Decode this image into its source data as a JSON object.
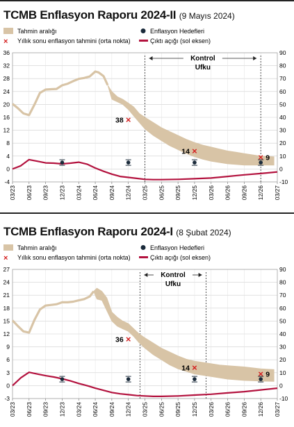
{
  "chart_data": [
    {
      "type": "line",
      "title": "TCMB Enflasyon Raporu 2024-II",
      "subtitle": "(9 Mayıs 2024)",
      "legend": {
        "band": "Tahmin aralığı",
        "marker": "Yıllık sonu enflasyon tahmini (orta nokta)",
        "target": "Enflasyon Hedefleri",
        "gap": "Çıktı açığı (sol eksen)"
      },
      "colors": {
        "band": "#d8c4a6",
        "marker": "#d42020",
        "gap": "#b3123e",
        "target": "#1a2a3a"
      },
      "left_axis": {
        "ticks": [
          -4,
          0,
          4,
          8,
          12,
          16,
          20,
          24,
          28,
          32,
          36
        ],
        "range": [
          -4,
          36
        ]
      },
      "right_axis": {
        "ticks": [
          -10,
          0,
          10,
          20,
          30,
          40,
          50,
          60,
          70,
          80,
          90
        ],
        "range": [
          -10,
          90
        ]
      },
      "x_tick_labels": [
        "03/23",
        "06/23",
        "09/23",
        "12/23",
        "03/24",
        "06/24",
        "09/24",
        "12/24",
        "03/25",
        "06/25",
        "09/25",
        "12/25",
        "03/26",
        "06/26",
        "09/26",
        "12/26",
        "03/27"
      ],
      "horizon_label": [
        "Kontrol",
        "Ufku"
      ],
      "horizon_range": [
        8,
        15
      ],
      "inflation_path": [
        [
          0,
          50.5
        ],
        [
          0.33,
          47
        ],
        [
          0.66,
          43
        ],
        [
          1,
          41.7
        ],
        [
          1.33,
          50
        ],
        [
          1.66,
          59
        ],
        [
          2,
          61.5
        ],
        [
          2.33,
          61.8
        ],
        [
          2.66,
          62
        ],
        [
          3,
          64.8
        ],
        [
          3.33,
          66
        ],
        [
          3.66,
          68
        ],
        [
          4,
          69.8
        ],
        [
          4.33,
          70.5
        ],
        [
          4.66,
          71.6
        ],
        [
          5,
          75.5
        ],
        [
          5.2,
          74.8
        ],
        [
          5.5,
          71.9
        ],
        [
          5.75,
          65
        ]
      ],
      "band_upper": [
        [
          5.75,
          65
        ],
        [
          6,
          60
        ],
        [
          6.33,
          56
        ],
        [
          6.66,
          54
        ],
        [
          7,
          51
        ],
        [
          7.33,
          48
        ],
        [
          7.66,
          43
        ],
        [
          8,
          40
        ],
        [
          8.5,
          36
        ],
        [
          9,
          32
        ],
        [
          9.5,
          29
        ],
        [
          10,
          26
        ],
        [
          10.5,
          23
        ],
        [
          11,
          20.5
        ],
        [
          11.5,
          18.5
        ],
        [
          12,
          17
        ],
        [
          12.5,
          15.5
        ],
        [
          13,
          14
        ],
        [
          13.5,
          13
        ],
        [
          14,
          12
        ],
        [
          15,
          10
        ],
        [
          15.8,
          9.5
        ]
      ],
      "band_lower": [
        [
          5.75,
          65
        ],
        [
          6,
          54
        ],
        [
          6.33,
          52
        ],
        [
          6.66,
          50
        ],
        [
          7,
          46
        ],
        [
          7.33,
          41
        ],
        [
          7.66,
          36
        ],
        [
          8,
          31
        ],
        [
          8.5,
          26
        ],
        [
          9,
          22
        ],
        [
          9.5,
          18
        ],
        [
          10,
          15
        ],
        [
          10.5,
          12
        ],
        [
          11,
          9.5
        ],
        [
          11.5,
          7.5
        ],
        [
          12,
          6
        ],
        [
          12.5,
          5
        ],
        [
          13,
          4
        ],
        [
          13.5,
          3.5
        ],
        [
          14,
          3
        ],
        [
          15,
          3
        ],
        [
          15.8,
          3
        ]
      ],
      "year_end_forecasts": [
        {
          "x": 7,
          "y": 38,
          "label": "38"
        },
        {
          "x": 11,
          "y": 14,
          "label": "14"
        },
        {
          "x": 15,
          "y": 9,
          "label": "9"
        }
      ],
      "inflation_targets": [
        {
          "x": 3,
          "y": 5
        },
        {
          "x": 7,
          "y": 5
        },
        {
          "x": 11,
          "y": 5
        },
        {
          "x": 15,
          "y": 5
        }
      ],
      "output_gap": [
        [
          0,
          0
        ],
        [
          0.5,
          1
        ],
        [
          1,
          2.9
        ],
        [
          1.5,
          2.4
        ],
        [
          2,
          1.9
        ],
        [
          2.5,
          1.8
        ],
        [
          3,
          1.6
        ],
        [
          3.5,
          1.8
        ],
        [
          4,
          2.1
        ],
        [
          4.5,
          1.5
        ],
        [
          5,
          0.3
        ],
        [
          5.5,
          -0.7
        ],
        [
          6,
          -1.6
        ],
        [
          6.5,
          -2.3
        ],
        [
          7,
          -2.6
        ],
        [
          7.5,
          -2.9
        ],
        [
          8,
          -3.2
        ],
        [
          8.5,
          -3.3
        ],
        [
          9,
          -3.3
        ],
        [
          10,
          -3.2
        ],
        [
          11,
          -3.0
        ],
        [
          12,
          -2.8
        ],
        [
          13,
          -2.3
        ],
        [
          14,
          -1.8
        ],
        [
          15,
          -1.4
        ],
        [
          16,
          -0.9
        ]
      ]
    },
    {
      "type": "line",
      "title": "TCMB Enflasyon Raporu 2024-I",
      "subtitle": "(8 Şubat 2024)",
      "legend": {
        "band": "Tahmin aralığı",
        "marker": "Yıllık sonu enflasyon tahmini (orta nokta)",
        "target": "Enflasyon Hedefleri",
        "gap": "Çıktı açığı (sol eksen)"
      },
      "colors": {
        "band": "#d8c4a6",
        "marker": "#d42020",
        "gap": "#b3123e",
        "target": "#1a2a3a"
      },
      "left_axis": {
        "ticks": [
          -3,
          0,
          3,
          6,
          9,
          12,
          15,
          18,
          21,
          24,
          27
        ],
        "range": [
          -3,
          27
        ]
      },
      "right_axis": {
        "ticks": [
          -10,
          0,
          10,
          20,
          30,
          40,
          50,
          60,
          70,
          80,
          90
        ],
        "range": [
          -10,
          90
        ]
      },
      "x_tick_labels": [
        "03/23",
        "06/23",
        "09/23",
        "12/23",
        "03/24",
        "06/24",
        "09/24",
        "12/24",
        "03/25",
        "06/25",
        "09/25",
        "12/25",
        "03/26",
        "06/26",
        "09/26",
        "12/26",
        "03/27"
      ],
      "horizon_label": [
        "Kontrol",
        "Ufku"
      ],
      "horizon_range": [
        7.7,
        11.7
      ],
      "inflation_path": [
        [
          0,
          50.5
        ],
        [
          0.33,
          46
        ],
        [
          0.66,
          42
        ],
        [
          1,
          41
        ],
        [
          1.33,
          51
        ],
        [
          1.66,
          59
        ],
        [
          2,
          62
        ],
        [
          2.33,
          62.5
        ],
        [
          2.66,
          63
        ],
        [
          3,
          64.5
        ],
        [
          3.33,
          64.5
        ],
        [
          3.66,
          65
        ],
        [
          4,
          66
        ],
        [
          4.33,
          67
        ],
        [
          4.66,
          69
        ],
        [
          4.9,
          73
        ]
      ],
      "band_upper": [
        [
          4.9,
          73
        ],
        [
          5.1,
          75.5
        ],
        [
          5.4,
          73
        ],
        [
          5.7,
          68
        ],
        [
          6,
          57
        ],
        [
          6.33,
          53
        ],
        [
          6.66,
          50
        ],
        [
          7,
          48
        ],
        [
          7.33,
          44
        ],
        [
          7.66,
          40
        ],
        [
          8,
          37
        ],
        [
          8.5,
          33
        ],
        [
          9,
          29
        ],
        [
          9.5,
          26
        ],
        [
          10,
          23
        ],
        [
          10.5,
          20.5
        ],
        [
          11,
          19
        ],
        [
          11.5,
          18
        ],
        [
          12,
          17
        ],
        [
          12.5,
          16
        ],
        [
          13,
          15.5
        ],
        [
          14,
          14.5
        ],
        [
          15,
          13
        ],
        [
          15.8,
          12.5
        ]
      ],
      "band_lower": [
        [
          4.9,
          73
        ],
        [
          5.1,
          67
        ],
        [
          5.4,
          66
        ],
        [
          5.7,
          58
        ],
        [
          6,
          50
        ],
        [
          6.33,
          46
        ],
        [
          6.66,
          44
        ],
        [
          7,
          42
        ],
        [
          7.33,
          38
        ],
        [
          7.66,
          33
        ],
        [
          8,
          29
        ],
        [
          8.5,
          24
        ],
        [
          9,
          20
        ],
        [
          9.5,
          16
        ],
        [
          10,
          13
        ],
        [
          10.5,
          11
        ],
        [
          11,
          9
        ],
        [
          11.5,
          8
        ],
        [
          12,
          7
        ],
        [
          12.5,
          6
        ],
        [
          13,
          5
        ],
        [
          14,
          4
        ],
        [
          15,
          3.5
        ],
        [
          15.8,
          3.2
        ]
      ],
      "year_end_forecasts": [
        {
          "x": 7,
          "y": 36,
          "label": "36"
        },
        {
          "x": 11,
          "y": 14,
          "label": "14"
        },
        {
          "x": 15,
          "y": 9,
          "label": "9"
        }
      ],
      "inflation_targets": [
        {
          "x": 3,
          "y": 5
        },
        {
          "x": 7,
          "y": 5
        },
        {
          "x": 11,
          "y": 5
        },
        {
          "x": 15,
          "y": 5
        }
      ],
      "output_gap": [
        [
          0,
          0
        ],
        [
          0.5,
          1.8
        ],
        [
          1,
          3.1
        ],
        [
          1.5,
          2.7
        ],
        [
          2,
          2.3
        ],
        [
          2.5,
          2.0
        ],
        [
          3,
          1.6
        ],
        [
          3.5,
          1.1
        ],
        [
          4,
          0.5
        ],
        [
          4.5,
          0
        ],
        [
          5,
          -0.6
        ],
        [
          5.5,
          -1.1
        ],
        [
          6,
          -1.6
        ],
        [
          6.5,
          -1.9
        ],
        [
          7,
          -2.1
        ],
        [
          7.5,
          -2.3
        ],
        [
          8,
          -2.4
        ],
        [
          8.5,
          -2.5
        ],
        [
          9,
          -2.5
        ],
        [
          10,
          -2.4
        ],
        [
          11,
          -2.2
        ],
        [
          12,
          -2.0
        ],
        [
          13,
          -1.7
        ],
        [
          14,
          -1.4
        ],
        [
          15,
          -1.0
        ],
        [
          16,
          -0.6
        ]
      ]
    }
  ]
}
